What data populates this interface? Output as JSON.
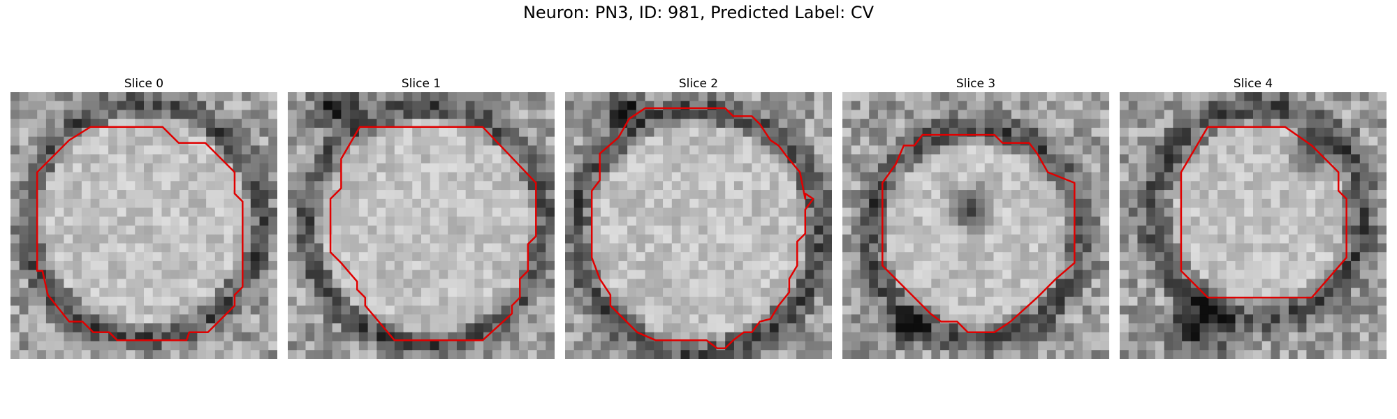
{
  "figure": {
    "title": "Neuron: PN3, ID: 981, Predicted Label: CV",
    "outline_color": "#e00000",
    "panels": [
      {
        "label": "Slice 0"
      },
      {
        "label": "Slice 1"
      },
      {
        "label": "Slice 2"
      },
      {
        "label": "Slice 3"
      },
      {
        "label": "Slice 4"
      }
    ]
  }
}
